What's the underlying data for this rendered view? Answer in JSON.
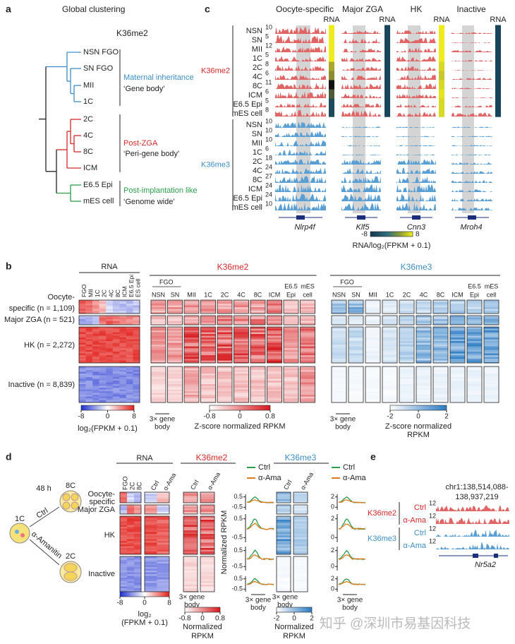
{
  "a": {
    "label": "a",
    "title": "Global clustering",
    "subtitle": "K36me2",
    "leaves": [
      "NSN FGO",
      "SN FGO",
      "MII",
      "1C",
      "2C",
      "4C",
      "8C",
      "ICM",
      "E6.5 Epi",
      "mES cell"
    ],
    "groups": [
      {
        "name": "Maternal inheritance",
        "desc": "‘Gene body’"
      },
      {
        "name": "Post-ZGA",
        "desc": "‘Peri-gene body’"
      },
      {
        "name": "Post-implantation like",
        "desc": "‘Genome wide’"
      }
    ]
  },
  "c": {
    "label": "c",
    "columns": [
      "Oocyte-specific",
      "Major ZGA",
      "HK",
      "Inactive"
    ],
    "rna": "RNA",
    "marks": [
      {
        "name": "K36me2",
        "samples": [
          "NSN",
          "SN",
          "MII",
          "1C",
          "2C",
          "4C",
          "8C",
          "ICM",
          "E6.5 Epi",
          "mES cell"
        ],
        "scales": [
          10,
          5,
          12,
          5,
          8,
          6,
          11,
          6,
          5,
          8
        ]
      },
      {
        "name": "K36me3",
        "samples": [
          "NSN",
          "SN",
          "MII",
          "1C",
          "2C",
          "4C",
          "8C",
          "ICM",
          "E6.5 Epi",
          "mES cell"
        ],
        "scales": [
          10,
          10,
          10,
          6,
          18,
          24,
          27,
          24,
          24,
          10
        ]
      }
    ],
    "genes": [
      "Nlrp4f",
      "Klf5",
      "Cnn3",
      "Mroh4"
    ],
    "colorbar": {
      "min": -8,
      "max": 8,
      "label": "RNA/log₂(FPKM + 0.1)"
    }
  },
  "b": {
    "label": "b",
    "rna": {
      "title": "RNA",
      "columns": [
        "FGO",
        "MII",
        "1C",
        "2C",
        "4C",
        "8C",
        "ICM",
        "E6.5 Epi",
        "ES cell"
      ]
    },
    "rows": [
      [
        "Oocyte-",
        "specific (n = 1,109)"
      ],
      [
        "Major ZGA (n = 521)"
      ],
      [
        "HK (n = 2,272)"
      ],
      [
        "Inactive (n = 8,839)"
      ]
    ],
    "marks": [
      {
        "name": "K36me2",
        "group": "FGO",
        "columns": [
          [
            "NSN"
          ],
          [
            "SN"
          ],
          [
            "MII"
          ],
          [
            "1C"
          ],
          [
            "2C"
          ],
          [
            "4C"
          ],
          [
            "8C"
          ],
          [
            "ICM"
          ],
          [
            "E6.5",
            "Epi"
          ],
          [
            "mES",
            "cell"
          ]
        ]
      },
      {
        "name": "K36me3",
        "group": "FGO",
        "columns": [
          [
            "NSN"
          ],
          [
            "SN"
          ],
          [
            "MII"
          ],
          [
            "1C"
          ],
          [
            "2C"
          ],
          [
            "4C"
          ],
          [
            "8C"
          ],
          [
            "ICM"
          ],
          [
            "E6.5",
            "Epi"
          ],
          [
            "mES",
            "cell"
          ]
        ]
      }
    ],
    "colorbars": [
      {
        "ticks": [
          -8,
          0,
          8
        ],
        "label": [
          "log₂(FPKM + 0.1)"
        ]
      },
      {
        "ticks": [
          -0.8,
          0,
          0.8
        ],
        "label": [
          "Z-score normalized RPKM"
        ]
      },
      {
        "ticks": [
          -2,
          0,
          2
        ],
        "label": [
          "Z-score normalized",
          "RPKM"
        ]
      }
    ],
    "gene_body": [
      "3× gene",
      "body"
    ]
  },
  "d": {
    "label": "d",
    "schematic": {
      "time": "48 h",
      "start": "1C",
      "top": "8C",
      "bottom": "2C",
      "ctrl": "Ctrl",
      "treat": "α-Amanitin"
    },
    "rna": {
      "title": "RNA",
      "columns": [
        "FGO",
        "2C",
        "8C",
        "Ctrl",
        "α-Ama"
      ]
    },
    "rows": [
      [
        "Oocyte-",
        "specific"
      ],
      [
        "Major ZGA"
      ],
      [
        "HK"
      ],
      [
        "Inactive"
      ]
    ],
    "marks": [
      {
        "name": "K36me2",
        "columns": [
          "Ctrl",
          "α-Ama"
        ],
        "legend": [
          "Ctrl",
          "α-Ama"
        ],
        "yticks": [
          0.5,
          -0.5
        ]
      },
      {
        "name": "K36me3",
        "columns": [
          "Ctrl",
          "α-Ama"
        ],
        "legend": [
          "Ctrl",
          "α-Ama"
        ],
        "yticks": [
          2,
          0
        ]
      }
    ],
    "ylabel": "Normalized RPKM",
    "colorbars": [
      {
        "ticks": [
          -8,
          0,
          8
        ],
        "label": [
          "log₂",
          "(FPKM + 0.1)"
        ]
      },
      {
        "ticks": [
          -0.8,
          0,
          0.8
        ],
        "label": [
          "Normalized",
          "RPKM"
        ]
      },
      {
        "ticks": [
          -2,
          0,
          2
        ],
        "label": [
          "Normalized",
          "RPKM"
        ]
      }
    ],
    "gene_body": [
      "3× gene",
      "body"
    ]
  },
  "e": {
    "label": "e",
    "locus": [
      "chr1:138,514,088-",
      "138,937,219"
    ],
    "marks": [
      {
        "name": "K36me2",
        "tracks": [
          "Ctrl",
          "α-Ama"
        ],
        "scales": [
          12,
          12
        ]
      },
      {
        "name": "K36me3",
        "tracks": [
          "Ctrl",
          "α-Ama"
        ],
        "scales": [
          12,
          12
        ]
      }
    ],
    "gene": "Nr5a2"
  },
  "watermark": "知乎 @深圳市易基因科技"
}
